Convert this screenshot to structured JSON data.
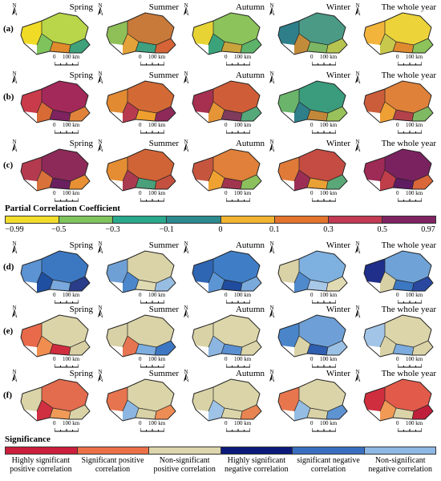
{
  "seasons": [
    "Spring",
    "Summer",
    "Autumn",
    "Winter",
    "The whole year"
  ],
  "north_letter": "N",
  "scale": {
    "zero": "0",
    "label": "100 km"
  },
  "rows": [
    {
      "letter": "(a)",
      "palettes": [
        [
          "#b9d64a",
          "#f0dc26",
          "#7ec35c",
          "#e08a2b",
          "#3fa27a"
        ],
        [
          "#c87a3a",
          "#8fbf57",
          "#e4a23a",
          "#3ea07e",
          "#d66437"
        ],
        [
          "#8cc35a",
          "#e7d434",
          "#3aa37a",
          "#c9a33c",
          "#5db36a"
        ],
        [
          "#4a9a86",
          "#2e7f8a",
          "#c28b3a",
          "#7cb662",
          "#b7c450"
        ],
        [
          "#edd33a",
          "#f2b43a",
          "#c7c84c",
          "#e08a30",
          "#8cc35a"
        ]
      ]
    },
    {
      "letter": "(b)",
      "palettes": [
        [
          "#a3295a",
          "#c93b4b",
          "#d86a35",
          "#7e2260",
          "#e1823a"
        ],
        [
          "#d36a35",
          "#e18a32",
          "#b83a4f",
          "#ef9f2e",
          "#8e2a5a"
        ],
        [
          "#cf5e38",
          "#a73050",
          "#e59436",
          "#7f3a5c",
          "#55a87a"
        ],
        [
          "#3a9c7c",
          "#6ab46c",
          "#2e7f8a",
          "#c2883a",
          "#99c25a"
        ],
        [
          "#e0813a",
          "#cc5d3b",
          "#eea034",
          "#b3424a",
          "#7fba62"
        ]
      ]
    },
    {
      "letter": "(c)",
      "palettes": [
        [
          "#8e2a5a",
          "#b43a4f",
          "#d9713a",
          "#6a2060",
          "#e89034"
        ],
        [
          "#d06436",
          "#e58d33",
          "#a93a4f",
          "#4aa07a",
          "#c4503f"
        ],
        [
          "#e0803a",
          "#c6553e",
          "#efa232",
          "#a13550",
          "#8cc05c"
        ],
        [
          "#c44c42",
          "#e07a38",
          "#9c2e55",
          "#e9a034",
          "#5aa877"
        ],
        [
          "#7a2260",
          "#9e2a56",
          "#c03d4a",
          "#5e1c62",
          "#d9673a"
        ]
      ]
    },
    {
      "letter": "(d)",
      "palettes": [
        [
          "#3c78c2",
          "#5b93d3",
          "#1f4fa0",
          "#79a8dc",
          "#2a3d8a"
        ],
        [
          "#d9d3a7",
          "#6fa0d5",
          "#4c86cb",
          "#e0dab2",
          "#98bde2"
        ],
        [
          "#3f7ec6",
          "#2f66b3",
          "#5c95d4",
          "#1f4c9e",
          "#7aaadc"
        ],
        [
          "#7eb0e0",
          "#d8d2a6",
          "#4f8acc",
          "#a8c8e8",
          "#e1dbb3"
        ],
        [
          "#6fa3d8",
          "#1f2f8a",
          "#d7d0a5",
          "#3b77c2",
          "#2a48a0"
        ]
      ]
    },
    {
      "letter": "(e)",
      "palettes": [
        [
          "#dbd4a8",
          "#e86a4a",
          "#f08d4f",
          "#cf2d3e",
          "#d8d0a4"
        ],
        [
          "#dad3a7",
          "#d8d1a5",
          "#e77450",
          "#7eaedf",
          "#3d77c3"
        ],
        [
          "#dcd6aa",
          "#d9d2a6",
          "#8cb6e1",
          "#5a90d1",
          "#dbd5a9"
        ],
        [
          "#6ea0d7",
          "#4a85ca",
          "#dad3a7",
          "#2f5fb0",
          "#9ac0e4"
        ],
        [
          "#dcd5a9",
          "#a2c4e6",
          "#d9d2a6",
          "#7cabdd",
          "#dbd4a8"
        ]
      ]
    },
    {
      "letter": "(f)",
      "palettes": [
        [
          "#e36b4e",
          "#dbd4a8",
          "#cf2f40",
          "#f09a57",
          "#dad3a7"
        ],
        [
          "#dbd4a8",
          "#e6744f",
          "#8cb6e1",
          "#d9d2a6",
          "#ee8c55"
        ],
        [
          "#dad4a8",
          "#d9d2a6",
          "#9fc3e6",
          "#dbd5a9",
          "#e88451"
        ],
        [
          "#dbd4a8",
          "#e7764f",
          "#95bce3",
          "#d9d2a6",
          "#5e93d2"
        ],
        [
          "#e25a4a",
          "#cf2e3f",
          "#f09a56",
          "#dbd4a8",
          "#bf1f3a"
        ]
      ]
    }
  ],
  "partial_correlation": {
    "title": "Partial Correlation Coefficient",
    "colors": [
      "#f2dd2c",
      "#7fc45d",
      "#2aa88c",
      "#2d8a8e",
      "#f2b431",
      "#e4732e",
      "#c23a53",
      "#7f2462"
    ],
    "ticks": [
      "−0.99",
      "−0.5",
      "−0.3",
      "−0.1",
      "0",
      "0.1",
      "0.3",
      "0.5",
      "0.97"
    ]
  },
  "significance": {
    "title": "Significance",
    "colors": [
      "#cc1f3d",
      "#ec7048",
      "#ddd6ad",
      "#0c1a7a",
      "#3a6fc0",
      "#8eb8e4"
    ],
    "labels": [
      "Highly significant positive correlation",
      "Significant positive correlation",
      "Non-significant positive correlation",
      "Highly significant negative correlation",
      "significant negative correlation",
      "Non-significant negative correlation"
    ]
  }
}
